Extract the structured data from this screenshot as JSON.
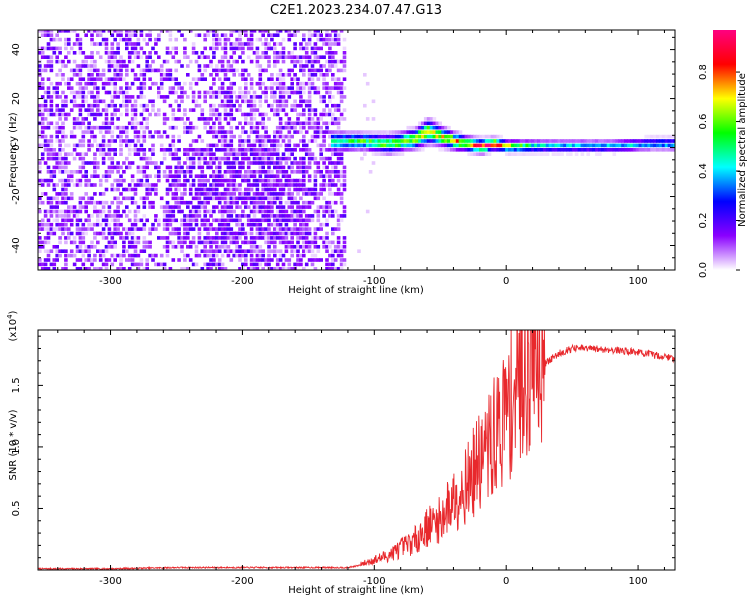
{
  "title": "C2E1.2023.234.07.47.G13",
  "chart_data": [
    {
      "type": "heatmap",
      "xlabel": "Height of straight line (km)",
      "ylabel": "Frequency (Hz)",
      "xlim": [
        -355,
        128
      ],
      "ylim": [
        -50,
        48
      ],
      "xticks": [
        -300,
        -200,
        -100,
        0,
        100
      ],
      "yticks": [
        -40,
        -20,
        0,
        20,
        40
      ],
      "colorbar": {
        "label": "Normalized spectral amplitude",
        "range": [
          0.0,
          0.97
        ],
        "ticks": [
          0.0,
          0.2,
          0.4,
          0.6,
          0.8
        ],
        "colors": [
          "#ffffff",
          "#8a00ff",
          "#0000ff",
          "#00ffff",
          "#00ff00",
          "#ffff00",
          "#ff0000",
          "#ff0080"
        ]
      },
      "ridge": {
        "x": [
          -130,
          -110,
          -90,
          -70,
          -60,
          -50,
          -40,
          -30,
          -20,
          -10,
          0,
          20,
          50,
          80,
          110,
          128
        ],
        "y": [
          2,
          2,
          1,
          3,
          6,
          4,
          2,
          1,
          0,
          1,
          0,
          0,
          0,
          0,
          1,
          1
        ],
        "halfwidth": [
          4,
          3.5,
          4,
          4,
          5,
          4,
          3.5,
          3,
          3,
          2.5,
          2.5,
          2.5,
          2.5,
          2.5,
          2.5,
          2.5
        ],
        "peak_amplitude": [
          0.5,
          0.55,
          0.6,
          0.65,
          0.7,
          0.7,
          0.75,
          0.75,
          0.85,
          0.95,
          0.7,
          0.45,
          0.4,
          0.4,
          0.4,
          0.4
        ]
      },
      "noise_region": {
        "x_range": [
          -355,
          -130
        ],
        "amplitude_range": [
          0.02,
          0.2
        ]
      }
    },
    {
      "type": "line",
      "xlabel": "Height of straight line (km)",
      "ylabel": "SNR (10 * v/v)",
      "y_multiplier": "(x10^4)",
      "xlim": [
        -355,
        128
      ],
      "ylim": [
        0,
        1.95
      ],
      "xticks": [
        -300,
        -200,
        -100,
        0,
        100
      ],
      "yticks": [
        0.5,
        1.0,
        1.5
      ],
      "series": [
        {
          "color": "#e8282c",
          "x": [
            -355,
            -300,
            -250,
            -200,
            -150,
            -120,
            -110,
            -100,
            -90,
            -80,
            -70,
            -60,
            -50,
            -40,
            -30,
            -20,
            -10,
            0,
            10,
            20,
            30,
            40,
            50,
            60,
            80,
            100,
            110,
            128
          ],
          "y": [
            0.01,
            0.01,
            0.02,
            0.02,
            0.02,
            0.02,
            0.04,
            0.07,
            0.1,
            0.15,
            0.2,
            0.3,
            0.35,
            0.5,
            0.6,
            0.75,
            0.9,
            1.1,
            1.35,
            1.55,
            1.68,
            1.76,
            1.8,
            1.8,
            1.79,
            1.77,
            1.75,
            1.72
          ]
        }
      ]
    }
  ]
}
